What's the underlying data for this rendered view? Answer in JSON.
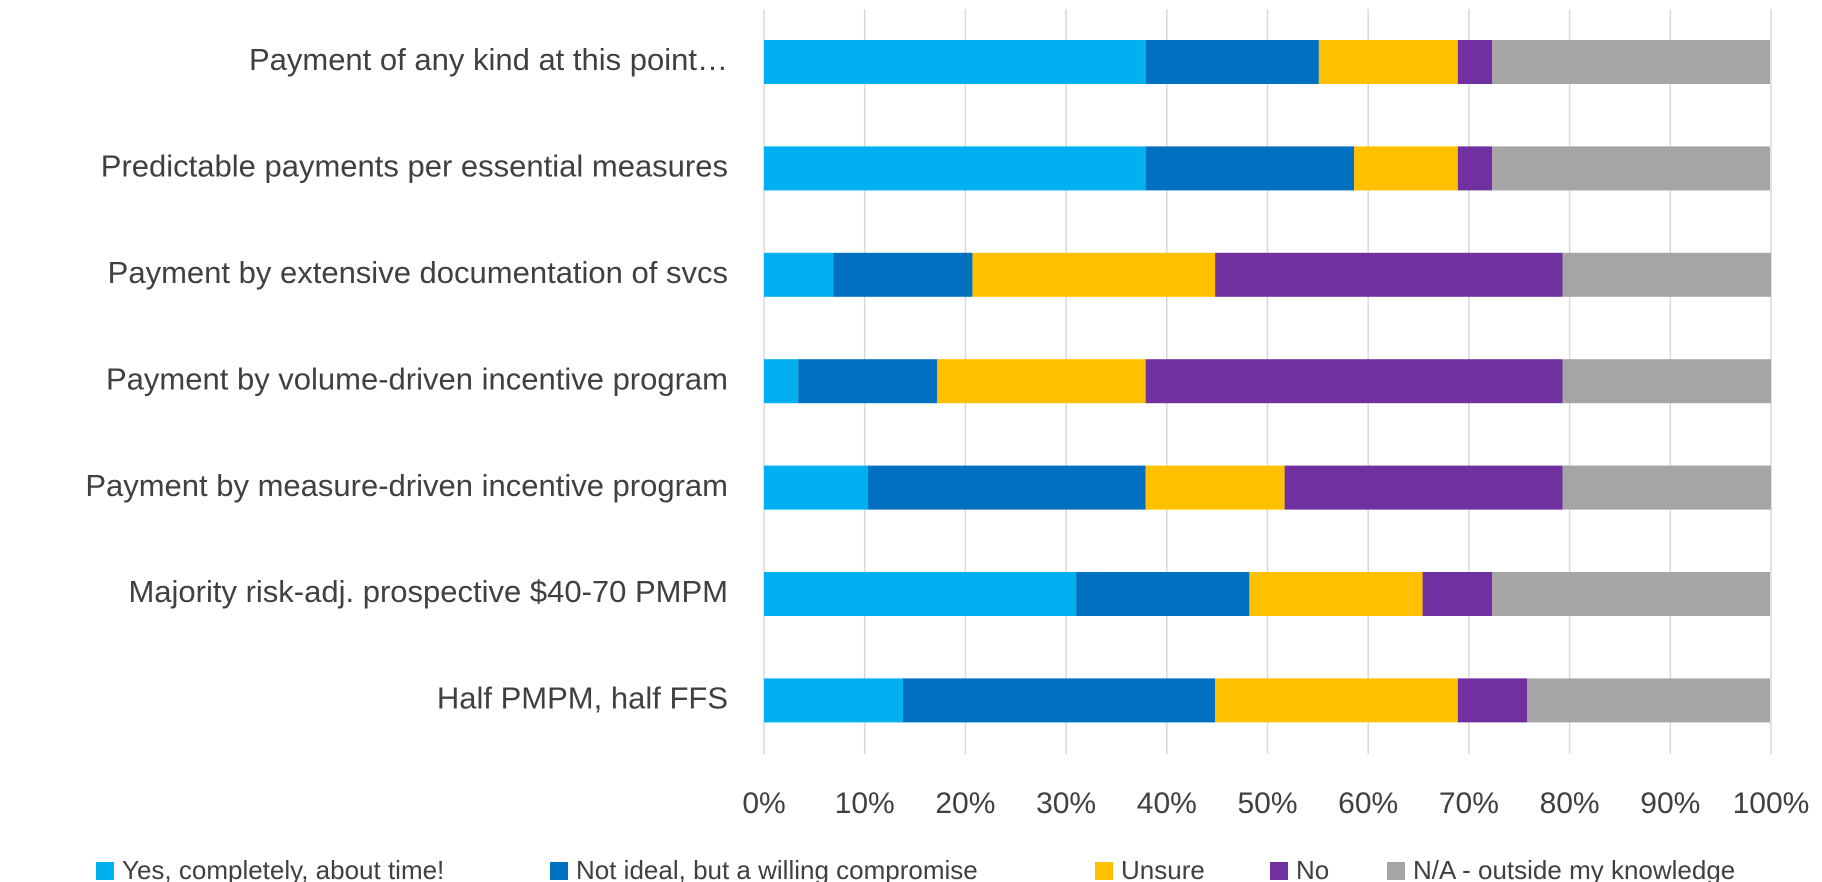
{
  "chart_data": {
    "type": "stacked_bar_horizontal",
    "categories": [
      "Payment of any kind at this point…",
      "Predictable payments per essential measures",
      "Payment by extensive documentation of svcs",
      "Payment by volume-driven incentive program",
      "Payment by measure-driven incentive program",
      "Majority risk-adj. prospective $40-70 PMPM",
      "Half PMPM, half FFS"
    ],
    "series": [
      {
        "name": "Yes, completely, about time!",
        "color": "#00b0f0",
        "values": [
          37.9,
          37.9,
          6.9,
          3.4,
          10.3,
          31.0,
          13.8
        ]
      },
      {
        "name": "Not ideal, but a willing compromise",
        "color": "#0070c0",
        "values": [
          17.2,
          20.7,
          13.8,
          13.8,
          27.6,
          17.2,
          31.0
        ]
      },
      {
        "name": "Unsure",
        "color": "#ffc000",
        "values": [
          13.8,
          10.3,
          24.1,
          20.7,
          13.8,
          17.2,
          24.1
        ]
      },
      {
        "name": "No",
        "color": "#7030a0",
        "values": [
          3.4,
          3.4,
          34.5,
          41.4,
          27.6,
          6.9,
          6.9
        ]
      },
      {
        "name": "N/A - outside my knowledge",
        "color": "#a5a5a5",
        "values": [
          27.6,
          27.6,
          20.7,
          20.7,
          20.7,
          27.6,
          24.1
        ]
      }
    ],
    "xlim": [
      0,
      100
    ],
    "xticks": [
      {
        "value": 0,
        "label": "0%"
      },
      {
        "value": 10,
        "label": "10%"
      },
      {
        "value": 20,
        "label": "20%"
      },
      {
        "value": 30,
        "label": "30%"
      },
      {
        "value": 40,
        "label": "40%"
      },
      {
        "value": 50,
        "label": "50%"
      },
      {
        "value": 60,
        "label": "60%"
      },
      {
        "value": 70,
        "label": "70%"
      },
      {
        "value": 80,
        "label": "80%"
      },
      {
        "value": 90,
        "label": "90%"
      },
      {
        "value": 100,
        "label": "100%"
      }
    ],
    "grid": true,
    "legend": "bottom"
  }
}
